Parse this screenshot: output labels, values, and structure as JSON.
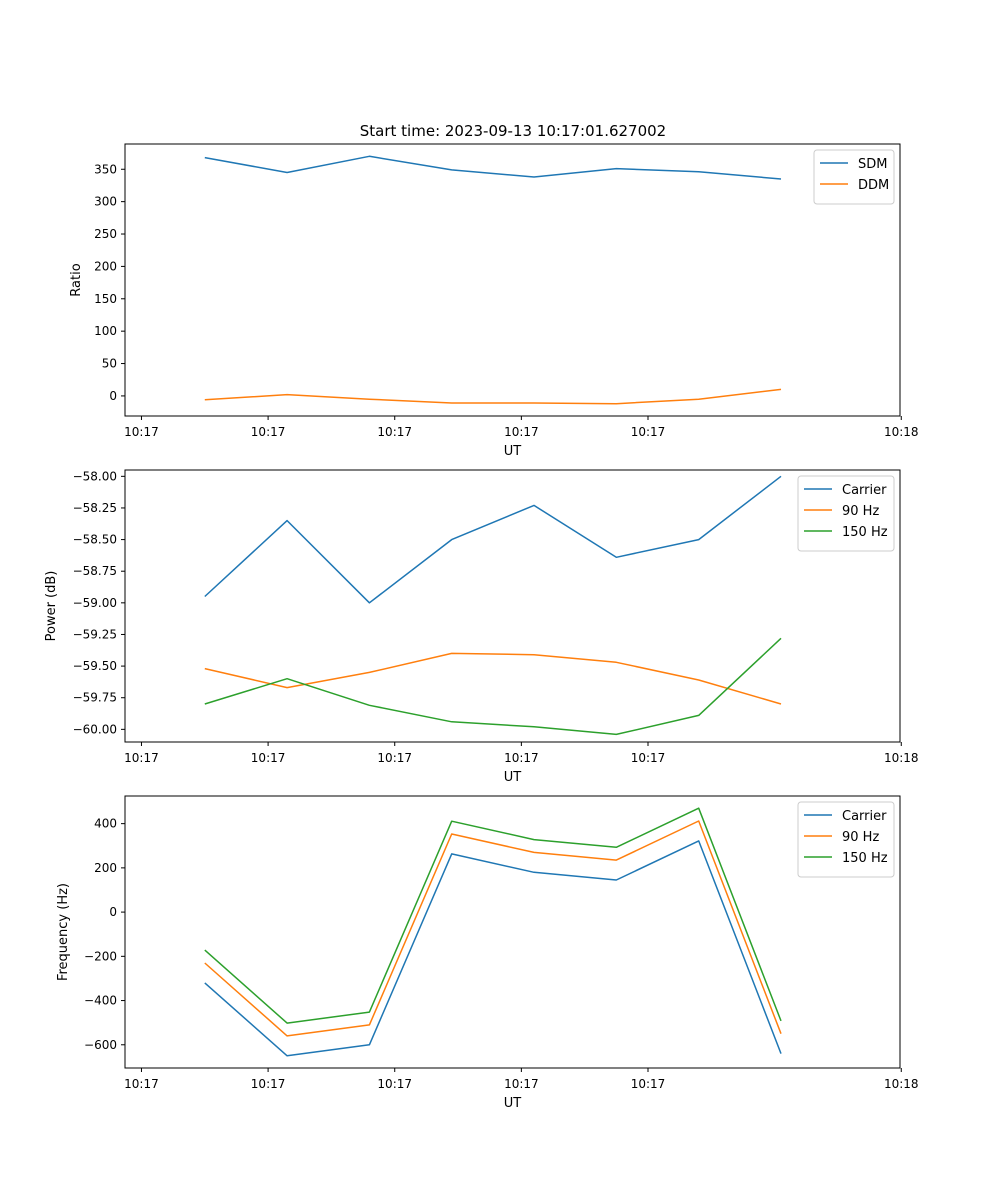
{
  "figure_title": "Start time: 2023-09-13 10:17:01.627002",
  "chart_data": [
    {
      "type": "line",
      "xlabel": "UT",
      "ylabel": "Ratio",
      "x_ticks": [
        {
          "x": 0.0,
          "label": "10:17"
        },
        {
          "x": 1.0,
          "label": "10:17"
        },
        {
          "x": 2.0,
          "label": "10:17"
        },
        {
          "x": 3.0,
          "label": "10:17"
        },
        {
          "x": 4.0,
          "label": "10:17"
        },
        {
          "x": 6.0,
          "label": "10:18"
        }
      ],
      "xlim": [
        -0.13,
        5.99
      ],
      "x": [
        0.5,
        1.15,
        1.8,
        2.45,
        3.1,
        3.75,
        4.4,
        5.05
      ],
      "ylim": [
        -31,
        389
      ],
      "y_ticks": [
        0,
        50,
        100,
        150,
        200,
        250,
        300,
        350
      ],
      "legend": "top-right",
      "series": [
        {
          "name": "SDM",
          "color": "#1f77b4",
          "values": [
            368,
            345,
            370,
            349,
            338,
            351,
            346,
            335
          ]
        },
        {
          "name": "DDM",
          "color": "#ff7f0e",
          "values": [
            -6,
            2,
            -5,
            -11,
            -11,
            -12,
            -5,
            10
          ]
        }
      ]
    },
    {
      "type": "line",
      "xlabel": "UT",
      "ylabel": "Power (dB)",
      "x_ticks": [
        {
          "x": 0.0,
          "label": "10:17"
        },
        {
          "x": 1.0,
          "label": "10:17"
        },
        {
          "x": 2.0,
          "label": "10:17"
        },
        {
          "x": 3.0,
          "label": "10:17"
        },
        {
          "x": 4.0,
          "label": "10:17"
        },
        {
          "x": 6.0,
          "label": "10:18"
        }
      ],
      "xlim": [
        -0.13,
        5.99
      ],
      "x": [
        0.5,
        1.15,
        1.8,
        2.45,
        3.1,
        3.75,
        4.4,
        5.05
      ],
      "ylim": [
        -60.1,
        -57.95
      ],
      "y_ticks": [
        -60.0,
        -59.75,
        -59.5,
        -59.25,
        -59.0,
        -58.75,
        -58.5,
        -58.25,
        -58.0
      ],
      "y_tick_labels": [
        "−60.00",
        "−59.75",
        "−59.50",
        "−59.25",
        "−59.00",
        "−58.75",
        "−58.50",
        "−58.25",
        "−58.00"
      ],
      "legend": "top-right",
      "series": [
        {
          "name": "Carrier",
          "color": "#1f77b4",
          "values": [
            -58.95,
            -58.35,
            -59.0,
            -58.5,
            -58.23,
            -58.64,
            -58.5,
            -58.0
          ]
        },
        {
          "name": "90 Hz",
          "color": "#ff7f0e",
          "values": [
            -59.52,
            -59.67,
            -59.55,
            -59.4,
            -59.41,
            -59.47,
            -59.61,
            -59.8
          ]
        },
        {
          "name": "150 Hz",
          "color": "#2ca02c",
          "values": [
            -59.8,
            -59.6,
            -59.81,
            -59.94,
            -59.98,
            -60.04,
            -59.89,
            -59.28
          ]
        }
      ]
    },
    {
      "type": "line",
      "xlabel": "UT",
      "ylabel": "Frequency (Hz)",
      "x_ticks": [
        {
          "x": 0.0,
          "label": "10:17"
        },
        {
          "x": 1.0,
          "label": "10:17"
        },
        {
          "x": 2.0,
          "label": "10:17"
        },
        {
          "x": 3.0,
          "label": "10:17"
        },
        {
          "x": 4.0,
          "label": "10:17"
        },
        {
          "x": 6.0,
          "label": "10:18"
        }
      ],
      "xlim": [
        -0.13,
        5.99
      ],
      "x": [
        0.5,
        1.15,
        1.8,
        2.45,
        3.1,
        3.75,
        4.4,
        5.05
      ],
      "ylim": [
        -705,
        525
      ],
      "y_ticks": [
        -600,
        -400,
        -200,
        0,
        200,
        400
      ],
      "y_tick_labels": [
        "−600",
        "−400",
        "−200",
        "0",
        "200",
        "400"
      ],
      "legend": "top-right",
      "series": [
        {
          "name": "Carrier",
          "color": "#1f77b4",
          "values": [
            -320,
            -650,
            -600,
            263,
            180,
            145,
            322,
            -640
          ]
        },
        {
          "name": "90 Hz",
          "color": "#ff7f0e",
          "values": [
            -230,
            -560,
            -510,
            353,
            270,
            235,
            412,
            -550
          ]
        },
        {
          "name": "150 Hz",
          "color": "#2ca02c",
          "values": [
            -172,
            -502,
            -452,
            411,
            328,
            293,
            470,
            -492
          ]
        }
      ]
    }
  ]
}
